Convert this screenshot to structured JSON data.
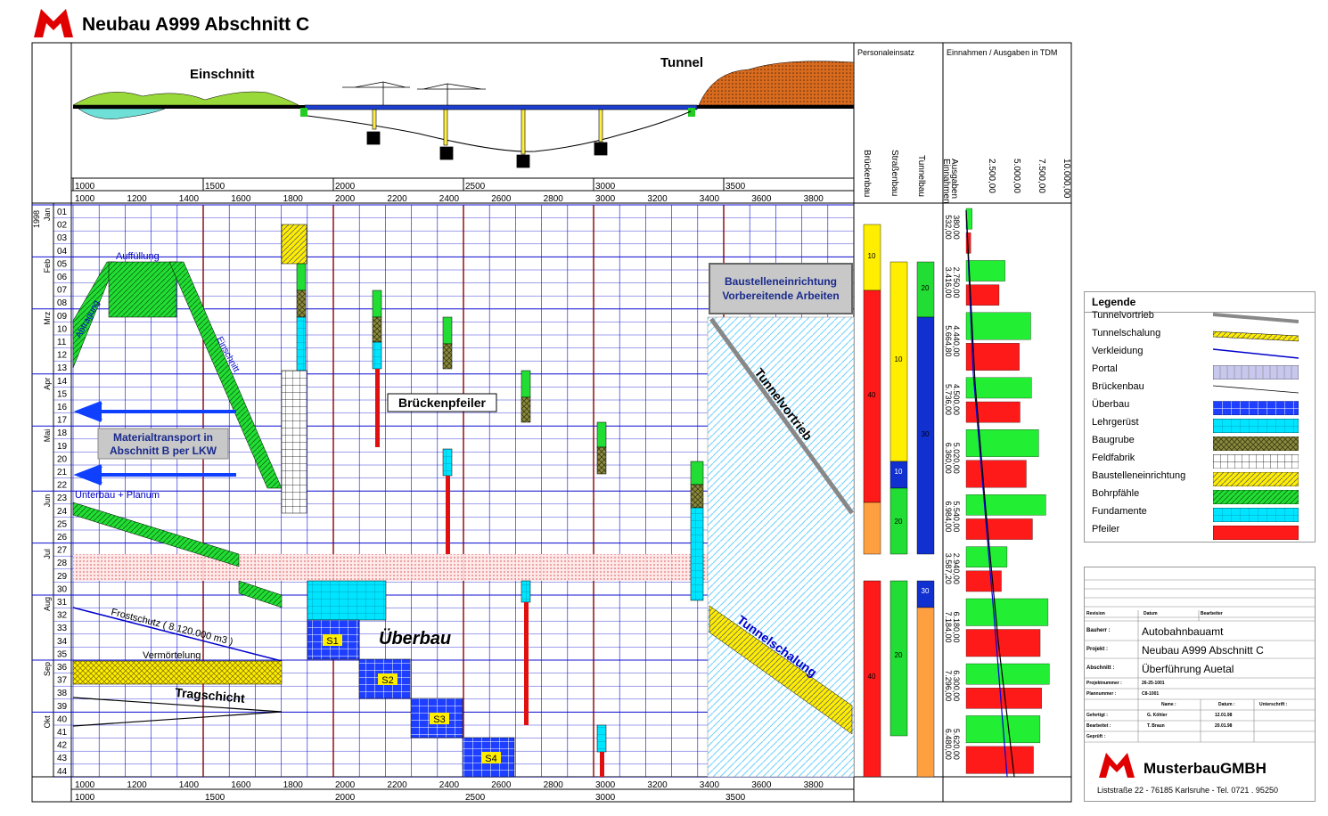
{
  "title": "Neubau A999 Abschnitt C",
  "profile": {
    "label_cut": "Einschnitt",
    "label_tunnel": "Tunnel",
    "station_top": [
      "1000",
      "1500",
      "2000",
      "2500",
      "3000",
      "3500"
    ],
    "station_bottom": [
      "1000",
      "1200",
      "1400",
      "1600",
      "1800",
      "2000",
      "2200",
      "2400",
      "2600",
      "2800",
      "3000",
      "3200",
      "3400",
      "3600",
      "3800"
    ]
  },
  "year": "1998",
  "months": [
    "Jan",
    "Feb",
    "Mrz",
    "Apr",
    "Mai",
    "Jun",
    "Jul",
    "Aug",
    "Sep",
    "Okt"
  ],
  "weeks": [
    "01",
    "02",
    "03",
    "04",
    "05",
    "06",
    "07",
    "08",
    "09",
    "10",
    "11",
    "12",
    "13",
    "14",
    "15",
    "16",
    "17",
    "18",
    "19",
    "20",
    "21",
    "22",
    "23",
    "24",
    "25",
    "26",
    "27",
    "28",
    "29",
    "30",
    "31",
    "32",
    "33",
    "34",
    "35",
    "36",
    "37",
    "38",
    "39",
    "40",
    "41",
    "42",
    "43",
    "44"
  ],
  "labels": {
    "auffuellung": "Auffüllung",
    "abtrag": "Abtragung",
    "einschnitt": "Einschnitt",
    "materialtransport_1": "Materialtransport in",
    "materialtransport_2": "Abschnitt B per LKW",
    "unterbau": "Unterbau + Planum",
    "frostschutz": "Frostschutz ( 8.120.000 m3 )",
    "vermoertelung": "Vermörtelung",
    "tragschicht": "Tragschicht",
    "brueckenpfeiler": "Brückenpfeiler",
    "ueberbau": "Überbau",
    "s1": "S1",
    "s2": "S2",
    "s3": "S3",
    "s4": "S4",
    "baustelle_1": "Baustelleneinrichtung",
    "baustelle_2": "Vorbereitende Arbeiten",
    "tunnelvortrieb": "Tunnelvortrieb",
    "tunnelschalung": "Tunnelschalung"
  },
  "personal": {
    "title": "Personaleinsatz",
    "cols": [
      "Brückenbau",
      "Straßenbau",
      "Tunnelbau"
    ],
    "values": {
      "b1": "10",
      "b2": "40",
      "b3": "40",
      "s1": "20",
      "s2": "10",
      "s3": "20",
      "s4": "20",
      "t1": "30",
      "t2": "10",
      "t3": "30"
    }
  },
  "finance": {
    "title": "Einnahmen / Ausgaben in TDM",
    "col_labels": [
      "Ausgaben",
      "Einnahmen"
    ],
    "axis": [
      "2.500,00",
      "5.000,00",
      "7.500,00",
      "10.000,00"
    ],
    "ausgaben": [
      "380,00",
      "2.750,00",
      "4.440,00",
      "4.500,00",
      "5.020,00",
      "5.540,00",
      "2.940,00",
      "6.180,00",
      "6.300,00",
      "5.620,00"
    ],
    "einnahmen": [
      "532,00",
      "3.416,00",
      "5.664,80",
      "5.736,00",
      "6.360,00",
      "6.984,00",
      "3.587,20",
      "7.184,00",
      "7.296,00",
      "6.480,00"
    ]
  },
  "legend": {
    "title": "Legende",
    "items": [
      "Tunnelvortrieb",
      "Tunnelschalung",
      "Verkleidung",
      "Portal",
      "Brückenbau",
      "Überbau",
      "Lehrgerüst",
      "Baugrube",
      "Feldfabrik",
      "Baustelleneinrichtung",
      "Bohrpfähle",
      "Fundamente",
      "Pfeiler"
    ]
  },
  "titleblock": {
    "revision": "Revision",
    "datum": "Datum",
    "bearbeiter": "Bearbeiter",
    "bauherr_k": "Bauherr :",
    "bauherr_v": "Autobahnbauamt",
    "projekt_k": "Projekt :",
    "projekt_v": "Neubau A999 Abschnitt C",
    "abschnitt_k": "Abschnitt :",
    "abschnitt_v": "Überführung Auetal",
    "projektnr_k": "Projektnummer :",
    "projektnr_v": "26-25-1001",
    "plannr_k": "Plannummer :",
    "plannr_v": "C8-1001",
    "name_h": "Name :",
    "datum_h": "Datum :",
    "unterschrift_h": "Unterschrift :",
    "gefertigt_k": "Gefertigt :",
    "gefertigt_n": "G. Köhler",
    "gefertigt_d": "12.01.98",
    "bearbeitet_k": "Bearbeitet :",
    "bearbeitet_n": "T. Braun",
    "bearbeitet_d": "20.01.98",
    "geprueft_k": "Geprüft :",
    "company": "MusterbauGMBH",
    "address": "Liststraße 22 - 76185 Karlsruhe - Tel. 0721 . 95250"
  }
}
